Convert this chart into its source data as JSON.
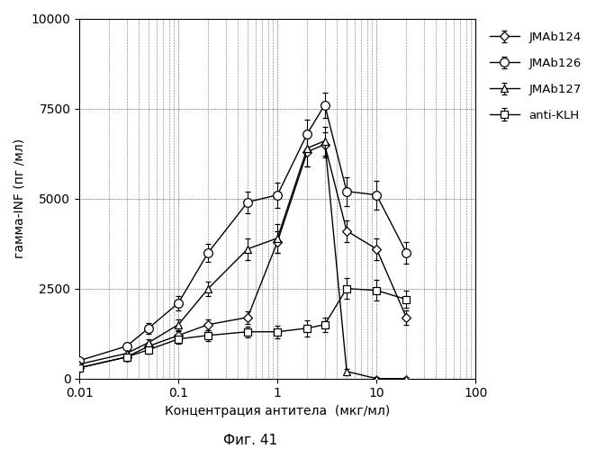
{
  "title": "",
  "xlabel": "Концентрация антитела  (мкг/мл)",
  "ylabel": "гамма-INF (пг /мл)",
  "caption": "Фиг. 41",
  "ylim": [
    0,
    10000
  ],
  "yticks": [
    0,
    2500,
    5000,
    7500,
    10000
  ],
  "xlim": [
    0.01,
    100
  ],
  "series": {
    "JMAb124": {
      "x": [
        0.01,
        0.03,
        0.05,
        0.1,
        0.2,
        0.5,
        1.0,
        2.0,
        3.0,
        5.0,
        10.0,
        20.0
      ],
      "y": [
        300,
        600,
        900,
        1200,
        1500,
        1700,
        3800,
        6300,
        6500,
        4100,
        3600,
        1700
      ],
      "yerr": [
        80,
        100,
        100,
        120,
        150,
        180,
        300,
        400,
        350,
        300,
        300,
        200
      ],
      "marker": "D",
      "markersize": 5,
      "label": "JMAb124"
    },
    "JMAb126": {
      "x": [
        0.01,
        0.03,
        0.05,
        0.1,
        0.2,
        0.5,
        1.0,
        2.0,
        3.0,
        5.0,
        10.0,
        20.0
      ],
      "y": [
        500,
        900,
        1400,
        2100,
        3500,
        4900,
        5100,
        6800,
        7600,
        5200,
        5100,
        3500
      ],
      "yerr": [
        80,
        100,
        150,
        200,
        250,
        300,
        350,
        400,
        350,
        400,
        400,
        300
      ],
      "marker": "o",
      "markersize": 7,
      "label": "JMAb126"
    },
    "JMAb127": {
      "x": [
        0.01,
        0.03,
        0.05,
        0.1,
        0.2,
        0.5,
        1.0,
        2.0,
        3.0,
        5.0,
        10.0,
        20.0
      ],
      "y": [
        400,
        700,
        1000,
        1500,
        2500,
        3600,
        3900,
        6400,
        6600,
        200,
        0,
        0
      ],
      "yerr": [
        80,
        100,
        100,
        150,
        200,
        300,
        400,
        500,
        400,
        80,
        50,
        50
      ],
      "marker": "^",
      "markersize": 6,
      "label": "JMAb127"
    },
    "anti-KLH": {
      "x": [
        0.01,
        0.03,
        0.05,
        0.1,
        0.2,
        0.5,
        1.0,
        2.0,
        3.0,
        5.0,
        10.0,
        20.0
      ],
      "y": [
        300,
        600,
        800,
        1100,
        1200,
        1300,
        1300,
        1400,
        1500,
        2500,
        2450,
        2200
      ],
      "yerr": [
        80,
        100,
        100,
        120,
        150,
        150,
        180,
        220,
        200,
        280,
        280,
        230
      ],
      "marker": "s",
      "markersize": 6,
      "label": "anti-KLH"
    }
  },
  "background_color": "#ffffff",
  "legend_order": [
    "JMAb124",
    "JMAb126",
    "JMAb127",
    "anti-KLH"
  ]
}
